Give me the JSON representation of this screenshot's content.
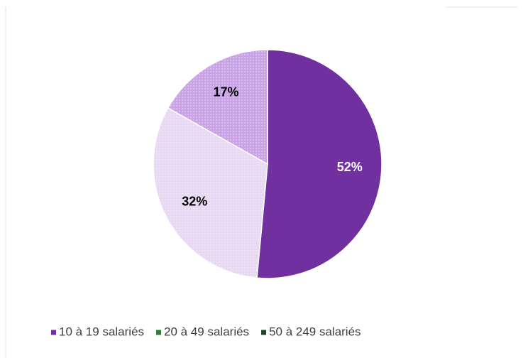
{
  "chart_data": {
    "type": "pie",
    "categories": [
      "10 à 19 salariés",
      "20 à 49 salariés",
      "50 à 249 salariés"
    ],
    "values": [
      52,
      32,
      17
    ],
    "value_labels": [
      "52%",
      "32%",
      "17%"
    ],
    "colors": [
      "#7030a0",
      "#e8d8f3",
      "#c9a3e6"
    ],
    "label_colors": [
      "#ffffff",
      "#000000",
      "#000000"
    ],
    "legend_colors": [
      "#7030a0",
      "#2e7d32",
      "#1e4620"
    ],
    "legend": "bottom"
  }
}
